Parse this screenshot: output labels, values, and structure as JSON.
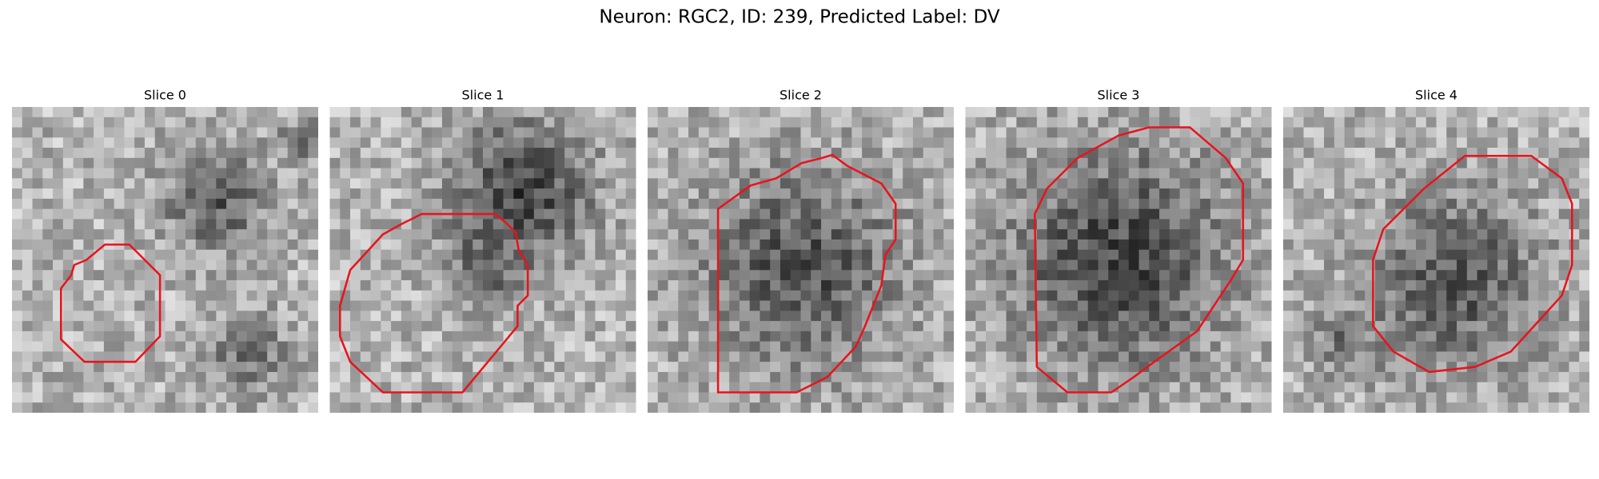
{
  "title": "Neuron: RGC2, ID: 239, Predicted Label: DV",
  "panels": [
    {
      "title": "Slice 0"
    },
    {
      "title": "Slice 1"
    },
    {
      "title": "Slice 2"
    },
    {
      "title": "Slice 3"
    },
    {
      "title": "Slice 4"
    }
  ]
}
